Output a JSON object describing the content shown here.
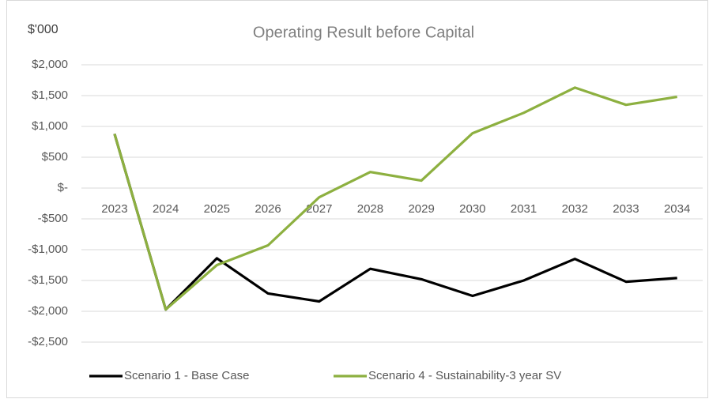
{
  "chart_data": {
    "type": "line",
    "title": "Operating Result before Capital",
    "y_axis_label": "$'000",
    "categories": [
      "2023",
      "2024",
      "2025",
      "2026",
      "2027",
      "2028",
      "2029",
      "2030",
      "2031",
      "2032",
      "2033",
      "2034"
    ],
    "series": [
      {
        "name": "Scenario 1 - Base Case",
        "color": "#000000",
        "values": [
          880,
          -1970,
          -1140,
          -1710,
          -1840,
          -1310,
          -1480,
          -1750,
          -1500,
          -1150,
          -1520,
          -1460
        ]
      },
      {
        "name": "Scenario 4 - Sustainability-3 year SV",
        "color": "#8db040",
        "values": [
          880,
          -1970,
          -1250,
          -930,
          -150,
          260,
          120,
          890,
          1220,
          1630,
          1350,
          1480
        ]
      }
    ],
    "ylim": [
      -2500,
      2000
    ],
    "yticks": [
      {
        "value": 2000,
        "label": "$2,000"
      },
      {
        "value": 1500,
        "label": "$1,500"
      },
      {
        "value": 1000,
        "label": "$1,000"
      },
      {
        "value": 500,
        "label": "$500"
      },
      {
        "value": 0,
        "label": "$-"
      },
      {
        "value": -500,
        "label": "-$500"
      },
      {
        "value": -1000,
        "label": "-$1,000"
      },
      {
        "value": -1500,
        "label": "-$1,500"
      },
      {
        "value": -2000,
        "label": "-$2,000"
      },
      {
        "value": -2500,
        "label": "-$2,500"
      }
    ],
    "grid": true,
    "legend": "bottom"
  }
}
